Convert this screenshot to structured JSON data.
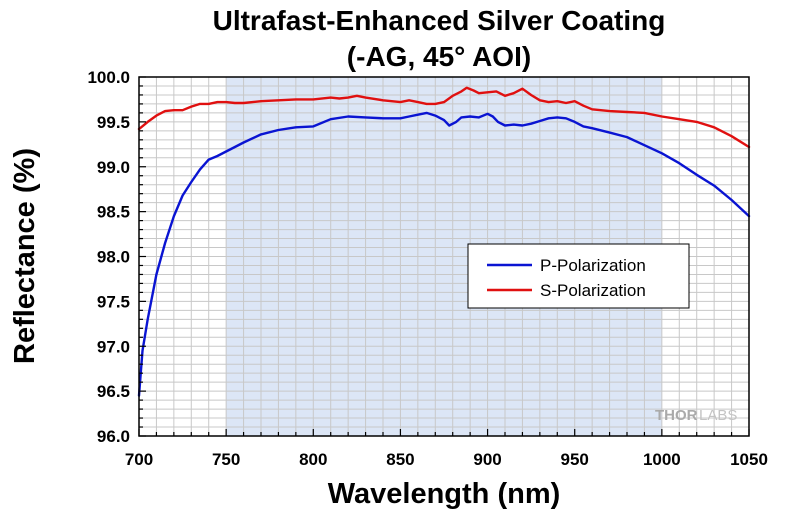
{
  "chart_data": {
    "type": "line",
    "title": [
      "Ultrafast-Enhanced Silver Coating",
      "(-AG, 45° AOI)"
    ],
    "xlabel": "Wavelength (nm)",
    "ylabel": "Reflectance (%)",
    "xlim": [
      700,
      1050
    ],
    "ylim": [
      96.0,
      100.0
    ],
    "xticks": [
      "700",
      "750",
      "800",
      "850",
      "900",
      "950",
      "1000",
      "1050"
    ],
    "yticks": [
      "96.0",
      "96.5",
      "97.0",
      "97.5",
      "98.0",
      "98.5",
      "99.0",
      "99.5",
      "100.0"
    ],
    "grid": true,
    "legend_position": "center-right",
    "highlight_region": {
      "x": [
        750,
        1000
      ],
      "color": "#dce6f6"
    },
    "series": [
      {
        "name": "P-Polarization",
        "color": "#0a14d2",
        "x": [
          700,
          702,
          705,
          710,
          715,
          720,
          725,
          730,
          735,
          740,
          745,
          750,
          755,
          760,
          770,
          780,
          790,
          800,
          810,
          820,
          830,
          840,
          850,
          855,
          860,
          865,
          870,
          875,
          878,
          882,
          885,
          890,
          895,
          900,
          903,
          906,
          910,
          915,
          920,
          925,
          930,
          935,
          940,
          945,
          950,
          955,
          960,
          970,
          980,
          990,
          1000,
          1010,
          1020,
          1030,
          1040,
          1050
        ],
        "values": [
          96.45,
          96.95,
          97.3,
          97.8,
          98.15,
          98.45,
          98.68,
          98.83,
          98.97,
          99.08,
          99.12,
          99.17,
          99.22,
          99.27,
          99.36,
          99.41,
          99.44,
          99.45,
          99.53,
          99.56,
          99.55,
          99.54,
          99.54,
          99.56,
          99.58,
          99.6,
          99.57,
          99.52,
          99.46,
          99.5,
          99.55,
          99.56,
          99.55,
          99.59,
          99.56,
          99.5,
          99.46,
          99.47,
          99.46,
          99.48,
          99.51,
          99.54,
          99.55,
          99.54,
          99.5,
          99.45,
          99.43,
          99.38,
          99.33,
          99.24,
          99.15,
          99.04,
          98.91,
          98.79,
          98.63,
          98.45
        ]
      },
      {
        "name": "S-Polarization",
        "color": "#e01010",
        "x": [
          700,
          705,
          710,
          715,
          720,
          725,
          730,
          735,
          740,
          745,
          750,
          755,
          760,
          770,
          780,
          790,
          800,
          810,
          815,
          820,
          825,
          830,
          840,
          850,
          855,
          860,
          865,
          870,
          875,
          880,
          885,
          888,
          892,
          895,
          900,
          905,
          910,
          915,
          920,
          925,
          930,
          935,
          940,
          945,
          950,
          955,
          960,
          970,
          980,
          990,
          1000,
          1010,
          1020,
          1030,
          1040,
          1050
        ],
        "values": [
          99.42,
          99.5,
          99.57,
          99.62,
          99.63,
          99.63,
          99.67,
          99.7,
          99.7,
          99.72,
          99.72,
          99.71,
          99.71,
          99.73,
          99.74,
          99.75,
          99.75,
          99.77,
          99.76,
          99.77,
          99.79,
          99.77,
          99.74,
          99.72,
          99.74,
          99.72,
          99.7,
          99.7,
          99.72,
          99.79,
          99.84,
          99.88,
          99.85,
          99.82,
          99.83,
          99.84,
          99.79,
          99.82,
          99.87,
          99.8,
          99.74,
          99.72,
          99.73,
          99.71,
          99.73,
          99.68,
          99.64,
          99.62,
          99.61,
          99.6,
          99.56,
          99.53,
          99.5,
          99.44,
          99.34,
          99.22
        ]
      }
    ]
  },
  "logo": {
    "text_a": "THOR",
    "text_b": "LABS"
  }
}
